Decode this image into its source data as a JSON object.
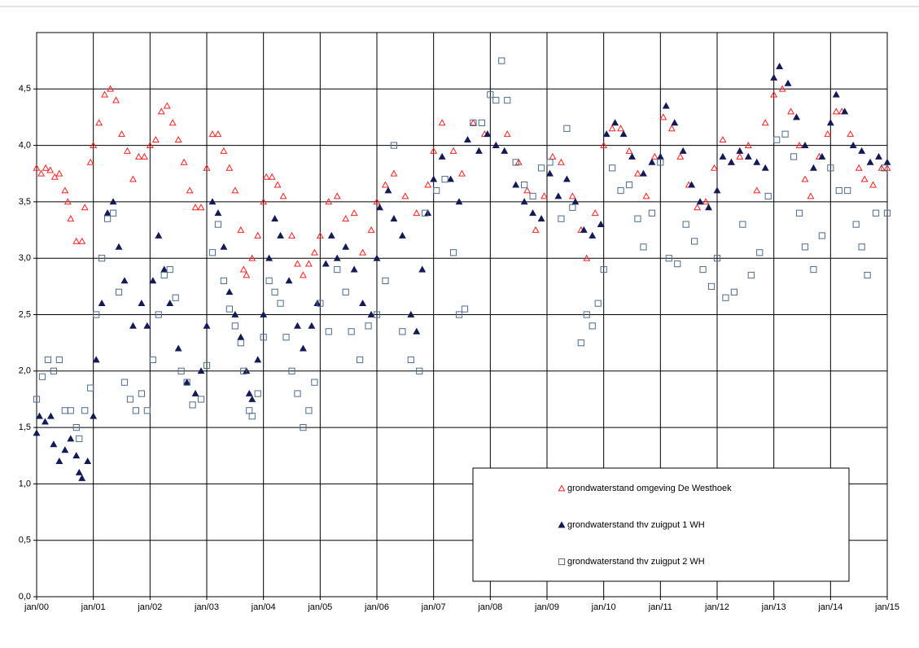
{
  "chart_data": {
    "type": "scatter",
    "xlim": [
      2000,
      2015
    ],
    "xticks": [
      {
        "value": 2000,
        "label": "jan/00"
      },
      {
        "value": 2001,
        "label": "jan/01"
      },
      {
        "value": 2002,
        "label": "jan/02"
      },
      {
        "value": 2003,
        "label": "jan/03"
      },
      {
        "value": 2004,
        "label": "jan/04"
      },
      {
        "value": 2005,
        "label": "jan/05"
      },
      {
        "value": 2006,
        "label": "jan/06"
      },
      {
        "value": 2007,
        "label": "jan/07"
      },
      {
        "value": 2008,
        "label": "jan/08"
      },
      {
        "value": 2009,
        "label": "jan/09"
      },
      {
        "value": 2010,
        "label": "jan/10"
      },
      {
        "value": 2011,
        "label": "jan/11"
      },
      {
        "value": 2012,
        "label": "jan/12"
      },
      {
        "value": 2013,
        "label": "jan/13"
      },
      {
        "value": 2014,
        "label": "jan/14"
      },
      {
        "value": 2015,
        "label": "jan/15"
      }
    ],
    "ylim": [
      0,
      5
    ],
    "yticks": [
      {
        "value": 0,
        "label": "0,0"
      },
      {
        "value": 0.5,
        "label": "0,5"
      },
      {
        "value": 1,
        "label": "1,0"
      },
      {
        "value": 1.5,
        "label": "1,5"
      },
      {
        "value": 2,
        "label": "2,0"
      },
      {
        "value": 2.5,
        "label": "2,5"
      },
      {
        "value": 3,
        "label": "3,0"
      },
      {
        "value": 3.5,
        "label": "3,5"
      },
      {
        "value": 4,
        "label": "4,0"
      },
      {
        "value": 4.5,
        "label": "4,5"
      }
    ],
    "grid": true,
    "series": [
      {
        "name": "grondwaterstand omgeving De Westhoek",
        "color": "#ff2020",
        "marker": "triangle-open",
        "x": [
          2000.0,
          2000.08,
          2000.16,
          2000.24,
          2000.32,
          2000.4,
          2000.5,
          2000.55,
          2000.6,
          2000.7,
          2000.8,
          2000.85,
          2000.95,
          2001.0,
          2001.1,
          2001.2,
          2001.3,
          2001.4,
          2001.5,
          2001.6,
          2001.7,
          2001.8,
          2001.9,
          2002.0,
          2002.1,
          2002.2,
          2002.3,
          2002.4,
          2002.5,
          2002.6,
          2002.7,
          2002.8,
          2002.9,
          2003.0,
          2003.1,
          2003.2,
          2003.3,
          2003.4,
          2003.5,
          2003.6,
          2003.65,
          2003.7,
          2003.8,
          2003.9,
          2004.0,
          2004.05,
          2004.15,
          2004.25,
          2004.35,
          2004.5,
          2004.6,
          2004.7,
          2004.8,
          2004.9,
          2005.0,
          2005.15,
          2005.3,
          2005.45,
          2005.6,
          2005.75,
          2005.9,
          2006.0,
          2006.15,
          2006.3,
          2006.5,
          2006.7,
          2006.9,
          2007.0,
          2007.15,
          2007.35,
          2007.5,
          2007.7,
          2007.9,
          2008.1,
          2008.3,
          2008.5,
          2008.65,
          2008.8,
          2008.95,
          2009.1,
          2009.25,
          2009.45,
          2009.6,
          2009.7,
          2009.85,
          2010.0,
          2010.15,
          2010.3,
          2010.45,
          2010.6,
          2010.75,
          2010.9,
          2011.05,
          2011.2,
          2011.35,
          2011.5,
          2011.65,
          2011.8,
          2011.95,
          2012.1,
          2012.25,
          2012.4,
          2012.55,
          2012.7,
          2012.85,
          2013.0,
          2013.15,
          2013.3,
          2013.45,
          2013.55,
          2013.65,
          2013.8,
          2013.95,
          2014.1,
          2014.2,
          2014.35,
          2014.5,
          2014.6,
          2014.75,
          2014.9,
          2015.0
        ],
        "values": [
          3.8,
          3.75,
          3.8,
          3.78,
          3.72,
          3.75,
          3.6,
          3.5,
          3.35,
          3.15,
          3.15,
          3.45,
          3.85,
          4.0,
          4.2,
          4.45,
          4.5,
          4.4,
          4.1,
          3.95,
          3.7,
          3.9,
          3.9,
          4.0,
          4.05,
          4.3,
          4.35,
          4.2,
          4.05,
          3.85,
          3.6,
          3.45,
          3.45,
          3.8,
          4.1,
          4.1,
          3.95,
          3.8,
          3.6,
          3.25,
          2.9,
          2.85,
          3.0,
          3.2,
          3.5,
          3.72,
          3.72,
          3.65,
          3.55,
          3.2,
          2.95,
          2.85,
          2.95,
          3.05,
          3.2,
          3.5,
          3.55,
          3.35,
          3.4,
          3.05,
          3.25,
          3.5,
          3.65,
          3.75,
          3.55,
          3.4,
          3.65,
          3.95,
          4.2,
          3.95,
          3.75,
          4.2,
          4.1,
          4.0,
          4.1,
          3.85,
          3.6,
          3.25,
          3.55,
          3.9,
          3.85,
          3.55,
          3.25,
          3.0,
          3.4,
          4.0,
          4.15,
          4.15,
          3.95,
          3.75,
          3.55,
          3.9,
          4.25,
          4.15,
          3.9,
          3.65,
          3.45,
          3.5,
          3.8,
          4.05,
          3.85,
          3.9,
          4.0,
          3.6,
          4.2,
          4.45,
          4.5,
          4.3,
          4.0,
          3.7,
          3.55,
          3.9,
          4.1,
          4.3,
          4.3,
          4.1,
          3.8,
          3.7,
          3.65,
          3.8,
          3.8
        ]
      },
      {
        "name": "grondwaterstand thv zuigput 1 WH",
        "color": "#141a55",
        "marker": "triangle-filled",
        "x": [
          2000.0,
          2000.05,
          2000.15,
          2000.25,
          2000.3,
          2000.4,
          2000.5,
          2000.6,
          2000.7,
          2000.75,
          2000.8,
          2000.9,
          2001.0,
          2001.05,
          2001.15,
          2001.25,
          2001.35,
          2001.45,
          2001.55,
          2001.7,
          2001.85,
          2001.95,
          2002.05,
          2002.15,
          2002.25,
          2002.35,
          2002.5,
          2002.65,
          2002.8,
          2002.9,
          2003.0,
          2003.1,
          2003.2,
          2003.3,
          2003.4,
          2003.5,
          2003.6,
          2003.7,
          2003.75,
          2003.8,
          2003.9,
          2004.0,
          2004.1,
          2004.2,
          2004.3,
          2004.45,
          2004.6,
          2004.7,
          2004.85,
          2004.95,
          2005.1,
          2005.2,
          2005.3,
          2005.45,
          2005.6,
          2005.75,
          2005.9,
          2006.0,
          2006.05,
          2006.2,
          2006.3,
          2006.45,
          2006.6,
          2006.7,
          2006.8,
          2006.9,
          2007.0,
          2007.15,
          2007.3,
          2007.45,
          2007.6,
          2007.8,
          2007.95,
          2008.1,
          2008.25,
          2008.45,
          2008.6,
          2008.75,
          2008.9,
          2009.05,
          2009.2,
          2009.35,
          2009.5,
          2009.65,
          2009.8,
          2009.95,
          2010.05,
          2010.2,
          2010.35,
          2010.5,
          2010.7,
          2010.85,
          2011.0,
          2011.1,
          2011.25,
          2011.4,
          2011.55,
          2011.7,
          2011.85,
          2012.0,
          2012.1,
          2012.25,
          2012.4,
          2012.55,
          2012.7,
          2012.85,
          2013.0,
          2013.1,
          2013.25,
          2013.4,
          2013.55,
          2013.7,
          2013.85,
          2014.0,
          2014.1,
          2014.25,
          2014.4,
          2014.55,
          2014.7,
          2014.85,
          2015.0
        ],
        "values": [
          1.45,
          1.6,
          1.55,
          1.6,
          1.35,
          1.2,
          1.3,
          1.4,
          1.25,
          1.1,
          1.05,
          1.2,
          1.6,
          2.1,
          2.6,
          3.4,
          3.5,
          3.1,
          2.8,
          2.4,
          2.6,
          2.4,
          2.8,
          3.2,
          2.9,
          2.6,
          2.2,
          1.9,
          1.8,
          2.0,
          2.4,
          3.5,
          3.4,
          3.1,
          2.7,
          2.5,
          2.3,
          2.0,
          1.8,
          1.75,
          2.1,
          2.5,
          3.0,
          3.35,
          3.2,
          2.8,
          2.4,
          2.2,
          2.4,
          2.6,
          2.95,
          3.2,
          3.0,
          3.1,
          2.9,
          2.6,
          2.5,
          3.0,
          3.45,
          3.6,
          3.35,
          3.2,
          2.5,
          2.35,
          2.9,
          3.4,
          3.7,
          3.9,
          3.7,
          3.5,
          4.05,
          3.95,
          4.1,
          4.0,
          3.95,
          3.65,
          3.5,
          3.4,
          3.35,
          3.75,
          3.55,
          3.7,
          3.5,
          3.25,
          3.2,
          3.3,
          4.1,
          4.2,
          4.1,
          3.9,
          3.75,
          3.85,
          3.9,
          4.35,
          4.2,
          3.95,
          3.65,
          3.5,
          3.45,
          3.6,
          3.9,
          3.85,
          3.95,
          3.9,
          3.85,
          3.8,
          4.6,
          4.7,
          4.55,
          4.25,
          4.0,
          3.8,
          3.9,
          4.2,
          4.45,
          4.3,
          4.0,
          3.95,
          3.85,
          3.9,
          3.85
        ]
      },
      {
        "name": "grondwaterstand thv zuigput 2 WH",
        "color": "#4f6b8c",
        "marker": "square-open",
        "x": [
          2000.0,
          2000.1,
          2000.2,
          2000.3,
          2000.4,
          2000.5,
          2000.6,
          2000.7,
          2000.75,
          2000.85,
          2000.95,
          2001.05,
          2001.15,
          2001.25,
          2001.35,
          2001.45,
          2001.55,
          2001.65,
          2001.75,
          2001.85,
          2001.95,
          2002.05,
          2002.15,
          2002.25,
          2002.35,
          2002.45,
          2002.55,
          2002.65,
          2002.75,
          2002.9,
          2003.0,
          2003.1,
          2003.2,
          2003.3,
          2003.4,
          2003.5,
          2003.6,
          2003.65,
          2003.75,
          2003.8,
          2003.9,
          2004.0,
          2004.1,
          2004.2,
          2004.3,
          2004.4,
          2004.5,
          2004.6,
          2004.7,
          2004.8,
          2004.9,
          2005.0,
          2005.15,
          2005.3,
          2005.45,
          2005.55,
          2005.7,
          2005.85,
          2006.0,
          2006.15,
          2006.3,
          2006.45,
          2006.6,
          2006.75,
          2006.85,
          2007.05,
          2007.2,
          2007.35,
          2007.45,
          2007.55,
          2007.7,
          2007.85,
          2008.0,
          2008.1,
          2008.2,
          2008.3,
          2008.45,
          2008.6,
          2008.75,
          2008.9,
          2009.05,
          2009.25,
          2009.35,
          2009.45,
          2009.6,
          2009.7,
          2009.8,
          2009.9,
          2010.0,
          2010.15,
          2010.3,
          2010.45,
          2010.6,
          2010.7,
          2010.85,
          2011.0,
          2011.15,
          2011.3,
          2011.45,
          2011.6,
          2011.75,
          2011.9,
          2012.0,
          2012.15,
          2012.3,
          2012.45,
          2012.6,
          2012.75,
          2012.9,
          2013.05,
          2013.2,
          2013.35,
          2013.45,
          2013.55,
          2013.7,
          2013.85,
          2014.0,
          2014.15,
          2014.3,
          2014.45,
          2014.55,
          2014.65,
          2014.8,
          2014.95,
          2015.0
        ],
        "values": [
          1.75,
          1.95,
          2.1,
          2.0,
          2.1,
          1.65,
          1.65,
          1.5,
          1.4,
          1.65,
          1.85,
          2.5,
          3.0,
          3.35,
          3.4,
          2.7,
          1.9,
          1.75,
          1.65,
          1.8,
          1.65,
          2.1,
          2.5,
          2.85,
          2.9,
          2.65,
          2.0,
          1.9,
          1.7,
          1.75,
          2.05,
          3.05,
          3.3,
          2.8,
          2.55,
          2.4,
          2.25,
          2.0,
          1.65,
          1.6,
          1.8,
          2.3,
          2.8,
          2.7,
          2.6,
          2.3,
          2.0,
          1.8,
          1.5,
          1.65,
          1.9,
          2.6,
          2.35,
          2.9,
          2.7,
          2.35,
          2.1,
          2.4,
          2.5,
          2.8,
          4.0,
          2.35,
          2.1,
          2.0,
          3.4,
          3.6,
          3.7,
          3.05,
          2.5,
          2.55,
          4.2,
          4.2,
          4.45,
          4.4,
          4.75,
          4.4,
          3.85,
          3.65,
          3.55,
          3.8,
          3.85,
          3.35,
          4.15,
          3.45,
          2.25,
          2.5,
          2.4,
          2.6,
          2.9,
          3.8,
          3.6,
          3.65,
          3.35,
          3.1,
          3.4,
          3.85,
          3.0,
          2.95,
          3.3,
          3.15,
          2.9,
          2.75,
          3.0,
          2.65,
          2.7,
          3.3,
          2.85,
          3.05,
          3.55,
          4.05,
          4.1,
          3.9,
          3.4,
          3.1,
          2.9,
          3.2,
          3.8,
          3.6,
          3.6,
          3.3,
          3.1,
          2.85,
          3.4,
          3.8,
          3.4
        ]
      }
    ]
  }
}
